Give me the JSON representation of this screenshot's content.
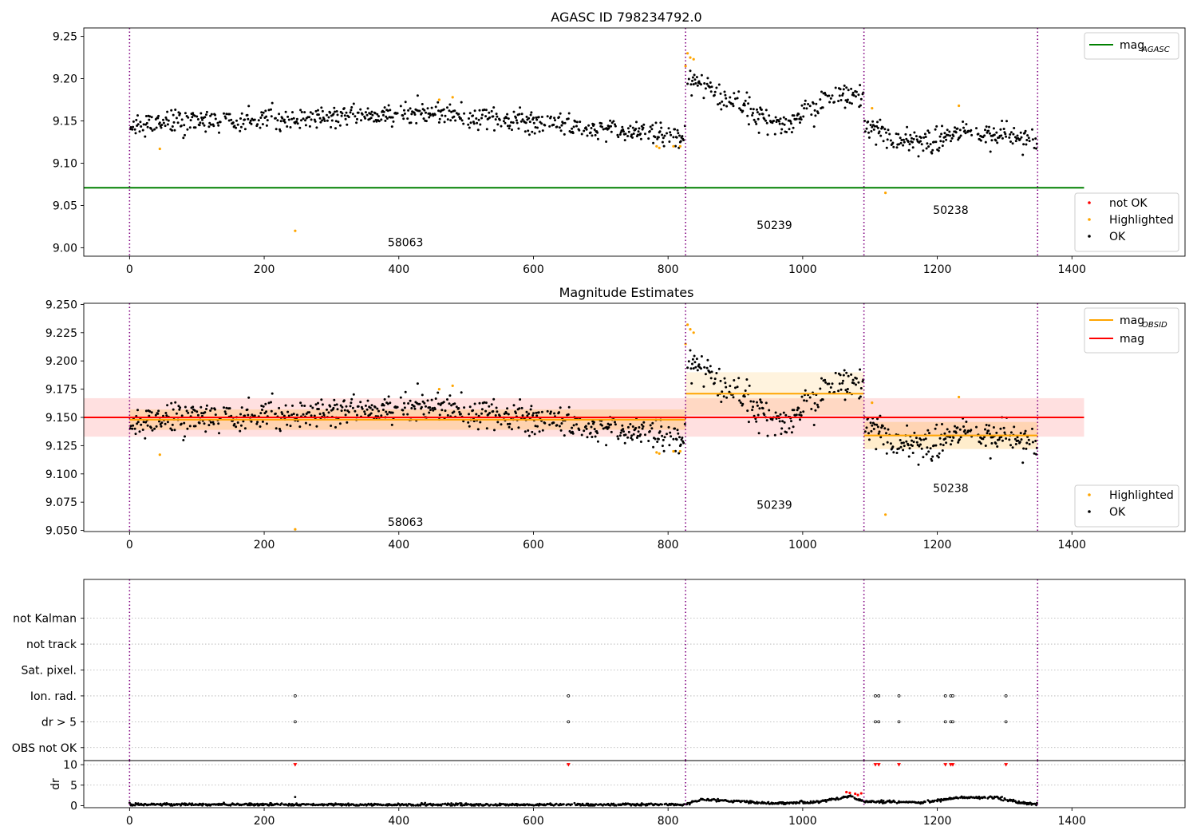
{
  "colors": {
    "ok": "#000000",
    "highlighted": "#ffa500",
    "not_ok": "#ff0000",
    "mag_agasc": "#008000",
    "mag_obsid": "#ffa500",
    "mag": "#ff0000",
    "obs_boundary": "#800080",
    "grid": "#b0b0b0"
  },
  "chart_data": [
    {
      "id": "panel1",
      "type": "scatter",
      "title": "AGASC ID 798234792.0",
      "xlim": [
        -68,
        1568
      ],
      "ylim": [
        8.99,
        9.26
      ],
      "xticks": [
        0,
        200,
        400,
        600,
        800,
        1000,
        1200,
        1400
      ],
      "yticks": [
        9.0,
        9.05,
        9.1,
        9.15,
        9.2,
        9.25
      ],
      "ytick_labels": [
        "9.00",
        "9.05",
        "9.10",
        "9.15",
        "9.20",
        "9.25"
      ],
      "legend_lines": [
        {
          "name": "mag",
          "sub": "AGASC",
          "color": "#008000"
        }
      ],
      "legend_markers": [
        {
          "name": "not OK",
          "color": "#ff0000"
        },
        {
          "name": "Highlighted",
          "color": "#ffa500"
        },
        {
          "name": "OK",
          "color": "#000000"
        }
      ],
      "hlines": [
        {
          "y": 9.071,
          "x": [
            -68,
            1418
          ],
          "color": "#008000"
        }
      ],
      "vlines": [
        0,
        826,
        1091,
        1349
      ],
      "annotations": [
        {
          "x": 410,
          "y": 9.002,
          "text": "58063"
        },
        {
          "x": 958,
          "y": 9.022,
          "text": "50239"
        },
        {
          "x": 1220,
          "y": 9.04,
          "text": "50238"
        }
      ],
      "segments": [
        {
          "start": 0,
          "end": 826,
          "seed": 11,
          "shape": [
            [
              0,
              9.146
            ],
            [
              200,
              9.152
            ],
            [
              450,
              9.158
            ],
            [
              600,
              9.148
            ],
            [
              760,
              9.138
            ],
            [
              826,
              9.13
            ]
          ],
          "noise": 0.0065
        },
        {
          "start": 826,
          "end": 1091,
          "seed": 23,
          "shape": [
            [
              826,
              9.2
            ],
            [
              860,
              9.19
            ],
            [
              920,
              9.16
            ],
            [
              980,
              9.145
            ],
            [
              1040,
              9.178
            ],
            [
              1091,
              9.18
            ]
          ],
          "noise": 0.0075
        },
        {
          "start": 1091,
          "end": 1349,
          "seed": 37,
          "shape": [
            [
              1091,
              9.15
            ],
            [
              1140,
              9.125
            ],
            [
              1200,
              9.128
            ],
            [
              1240,
              9.138
            ],
            [
              1349,
              9.128
            ]
          ],
          "noise": 0.0075
        }
      ],
      "highlighted": [
        [
          45,
          9.117
        ],
        [
          246,
          9.02
        ],
        [
          460,
          9.175
        ],
        [
          480,
          9.178
        ],
        [
          783,
          9.12
        ],
        [
          787,
          9.118
        ],
        [
          808,
          9.12
        ],
        [
          818,
          9.12
        ],
        [
          826,
          9.215
        ],
        [
          829,
          9.23
        ],
        [
          833,
          9.225
        ],
        [
          838,
          9.223
        ],
        [
          1103,
          9.165
        ],
        [
          1123,
          9.065
        ],
        [
          1232,
          9.168
        ]
      ]
    },
    {
      "id": "panel2",
      "type": "scatter",
      "title": "Magnitude Estimates",
      "xlim": [
        -68,
        1568
      ],
      "ylim": [
        9.049,
        9.251
      ],
      "xticks": [
        0,
        200,
        400,
        600,
        800,
        1000,
        1200,
        1400
      ],
      "yticks": [
        9.05,
        9.075,
        9.1,
        9.125,
        9.15,
        9.175,
        9.2,
        9.225,
        9.25
      ],
      "ytick_labels": [
        "9.050",
        "9.075",
        "9.100",
        "9.125",
        "9.150",
        "9.175",
        "9.200",
        "9.225",
        "9.250"
      ],
      "legend_lines": [
        {
          "name": "mag",
          "sub": "OBSID",
          "color": "#ffa500"
        },
        {
          "name": "mag",
          "sub": "",
          "color": "#ff0000"
        }
      ],
      "legend_markers": [
        {
          "name": "Highlighted",
          "color": "#ffa500"
        },
        {
          "name": "OK",
          "color": "#000000"
        }
      ],
      "bands": [
        {
          "x": [
            -68,
            1418
          ],
          "y": [
            9.133,
            9.167
          ],
          "color": "#ff0000",
          "opacity": 0.12
        },
        {
          "x": [
            0,
            826
          ],
          "y": [
            9.139,
            9.157
          ],
          "color": "#ffa500",
          "opacity": 0.22
        },
        {
          "x": [
            826,
            1091
          ],
          "y": [
            9.152,
            9.19
          ],
          "color": "#ffa500",
          "opacity": 0.13
        },
        {
          "x": [
            1091,
            1349
          ],
          "y": [
            9.122,
            9.146
          ],
          "color": "#ffa500",
          "opacity": 0.2
        }
      ],
      "hlines": [
        {
          "y": 9.15,
          "x": [
            -68,
            1418
          ],
          "color": "#ff0000"
        },
        {
          "y": 9.148,
          "x": [
            0,
            826
          ],
          "color": "#ffa500"
        },
        {
          "y": 9.171,
          "x": [
            826,
            1091
          ],
          "color": "#ffa500"
        },
        {
          "y": 9.134,
          "x": [
            1091,
            1349
          ],
          "color": "#ffa500"
        }
      ],
      "vlines": [
        0,
        826,
        1091,
        1349
      ],
      "annotations": [
        {
          "x": 410,
          "y": 9.054,
          "text": "58063"
        },
        {
          "x": 958,
          "y": 9.069,
          "text": "50239"
        },
        {
          "x": 1220,
          "y": 9.084,
          "text": "50238"
        }
      ],
      "segments": [
        {
          "start": 0,
          "end": 826,
          "seed": 11,
          "shape": [
            [
              0,
              9.146
            ],
            [
              200,
              9.152
            ],
            [
              450,
              9.158
            ],
            [
              600,
              9.148
            ],
            [
              760,
              9.138
            ],
            [
              826,
              9.13
            ]
          ],
          "noise": 0.0065
        },
        {
          "start": 826,
          "end": 1091,
          "seed": 23,
          "shape": [
            [
              826,
              9.2
            ],
            [
              860,
              9.19
            ],
            [
              920,
              9.16
            ],
            [
              980,
              9.145
            ],
            [
              1040,
              9.178
            ],
            [
              1091,
              9.18
            ]
          ],
          "noise": 0.0075
        },
        {
          "start": 1091,
          "end": 1349,
          "seed": 37,
          "shape": [
            [
              1091,
              9.15
            ],
            [
              1140,
              9.125
            ],
            [
              1200,
              9.128
            ],
            [
              1240,
              9.138
            ],
            [
              1349,
              9.128
            ]
          ],
          "noise": 0.0075
        }
      ],
      "highlighted": [
        [
          45,
          9.117
        ],
        [
          246,
          9.051
        ],
        [
          460,
          9.175
        ],
        [
          480,
          9.178
        ],
        [
          783,
          9.119
        ],
        [
          787,
          9.118
        ],
        [
          808,
          9.12
        ],
        [
          818,
          9.12
        ],
        [
          826,
          9.215
        ],
        [
          829,
          9.232
        ],
        [
          833,
          9.228
        ],
        [
          838,
          9.225
        ],
        [
          1103,
          9.163
        ],
        [
          1123,
          9.064
        ],
        [
          1232,
          9.168
        ]
      ]
    },
    {
      "id": "panel3",
      "type": "scatter",
      "title": "",
      "xlim": [
        -68,
        1568
      ],
      "ylim": [
        -0.5,
        6.5
      ],
      "category_labels": [
        "OBS not OK",
        "dr > 5",
        "Ion. rad.",
        "Sat. pixel.",
        "not track",
        "not Kalman"
      ],
      "flag_points": {
        "Ion. rad.": [
          246,
          652,
          1108,
          1113,
          1143,
          1212,
          1220,
          1223,
          1302
        ],
        "dr > 5": [
          246,
          652,
          1108,
          1113,
          1143,
          1212,
          1220,
          1223,
          1302
        ]
      },
      "vlines": [
        0,
        826,
        1091,
        1349
      ]
    },
    {
      "id": "panel4",
      "type": "scatter",
      "title": "",
      "ylabel": "dr",
      "xlim": [
        -68,
        1568
      ],
      "ylim": [
        -0.5,
        11
      ],
      "xticks": [
        0,
        200,
        400,
        600,
        800,
        1000,
        1200,
        1400
      ],
      "yticks": [
        0,
        5,
        10
      ],
      "ytick_labels": [
        "0",
        "5",
        "10"
      ],
      "hlines": [
        {
          "y": 10,
          "x": [
            -68,
            1568
          ],
          "color": "#b0b0b0",
          "dotted": true
        },
        {
          "y": 5,
          "x": [
            -68,
            1568
          ],
          "color": "#b0b0b0",
          "dotted": true
        }
      ],
      "vlines": [
        0,
        826,
        1091,
        1349
      ],
      "red_capped": [
        246,
        652,
        1108,
        1113,
        1143,
        1212,
        1220,
        1223,
        1302
      ],
      "red_low": [
        [
          1065,
          3.3
        ],
        [
          1070,
          3.1
        ],
        [
          1078,
          2.9
        ],
        [
          1082,
          2.6
        ],
        [
          1087,
          3.0
        ]
      ],
      "spike": [
        [
          246,
          2.1
        ]
      ],
      "dr_shape": [
        [
          0,
          0.3
        ],
        [
          600,
          0.2
        ],
        [
          826,
          0.3
        ],
        [
          850,
          1.5
        ],
        [
          900,
          1.1
        ],
        [
          960,
          0.5
        ],
        [
          1020,
          0.9
        ],
        [
          1070,
          2.2
        ],
        [
          1091,
          1.0
        ],
        [
          1180,
          0.8
        ],
        [
          1230,
          2.0
        ],
        [
          1290,
          1.9
        ],
        [
          1330,
          0.5
        ],
        [
          1349,
          0.4
        ]
      ]
    }
  ]
}
